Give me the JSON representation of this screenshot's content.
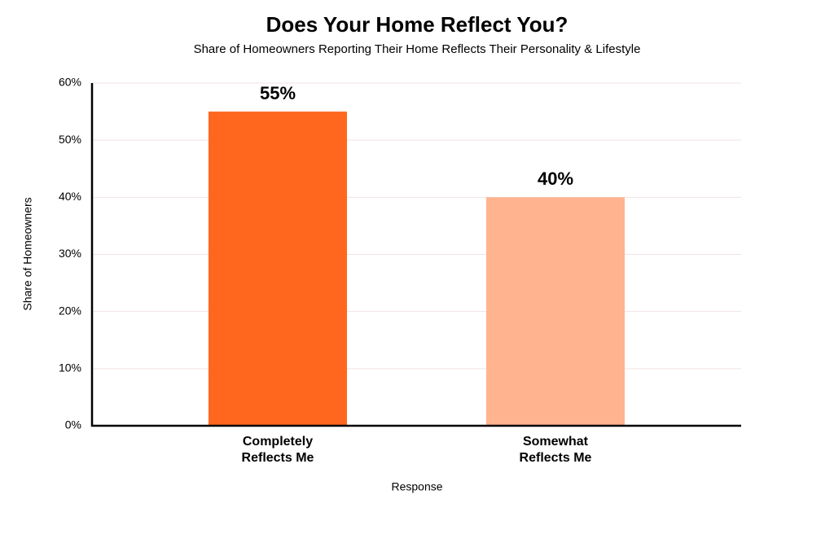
{
  "chart_data": {
    "type": "bar",
    "title": "Does Your Home Reflect You?",
    "subtitle": "Share of Homeowners Reporting Their Home Reflects Their Personality & Lifestyle",
    "x_label": "Response",
    "y_label": "Share of Homeowners",
    "categories": [
      "Completely Reflects Me",
      "Somewhat Reflects Me"
    ],
    "values": [
      55,
      40
    ],
    "value_labels": [
      "55%",
      "40%"
    ],
    "colors": [
      "#ff671f",
      "#ffb38f"
    ],
    "ylim": [
      0,
      60
    ],
    "yticks": [
      {
        "value": 0,
        "label": "0%"
      },
      {
        "value": 10,
        "label": "10%"
      },
      {
        "value": 20,
        "label": "20%"
      },
      {
        "value": 30,
        "label": "30%"
      },
      {
        "value": 40,
        "label": "40%"
      },
      {
        "value": 50,
        "label": "50%"
      },
      {
        "value": 60,
        "label": "60%"
      }
    ],
    "grid": true
  }
}
